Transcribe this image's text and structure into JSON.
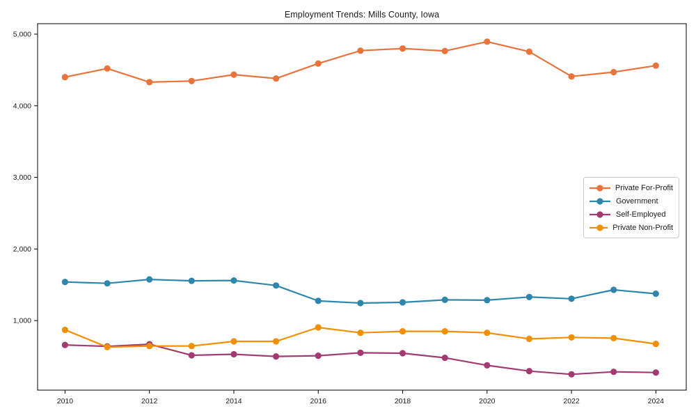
{
  "chart_data": {
    "type": "line",
    "title": "Employment Trends: Mills County, Iowa",
    "xlabel": "",
    "ylabel": "",
    "x": [
      2010,
      2011,
      2012,
      2013,
      2014,
      2015,
      2016,
      2017,
      2018,
      2019,
      2020,
      2021,
      2022,
      2023,
      2024
    ],
    "series": [
      {
        "name": "Private For-Profit",
        "color": "#E8743B",
        "values": [
          4400,
          4520,
          4330,
          4345,
          4435,
          4380,
          4590,
          4770,
          4800,
          4765,
          4895,
          4755,
          4410,
          4470,
          4560
        ]
      },
      {
        "name": "Government",
        "color": "#2E86AB",
        "values": [
          1540,
          1520,
          1575,
          1555,
          1560,
          1490,
          1275,
          1245,
          1255,
          1290,
          1285,
          1330,
          1305,
          1430,
          1375
        ]
      },
      {
        "name": "Self-Employed",
        "color": "#A23B72",
        "values": [
          660,
          640,
          670,
          515,
          530,
          500,
          510,
          550,
          545,
          480,
          375,
          295,
          250,
          285,
          275
        ]
      },
      {
        "name": "Private Non-Profit",
        "color": "#F18F01",
        "values": [
          870,
          630,
          645,
          645,
          710,
          710,
          905,
          830,
          850,
          850,
          830,
          745,
          765,
          755,
          675
        ]
      }
    ],
    "xlim": [
      2009.35,
      2024.72
    ],
    "ylim": [
      29,
      5146
    ],
    "x_ticks": [
      2010,
      2012,
      2014,
      2016,
      2018,
      2020,
      2022,
      2024
    ],
    "x_tick_labels": [
      "2010",
      "2012",
      "2014",
      "2016",
      "2018",
      "2020",
      "2022",
      "2024"
    ],
    "y_ticks": [
      1000,
      2000,
      3000,
      4000,
      5000
    ],
    "y_tick_labels": [
      "1,000",
      "2,000",
      "3,000",
      "4,000",
      "5,000"
    ],
    "grid": false,
    "legend_position": "center-right",
    "marker": "circle"
  },
  "style": {
    "spine_color": "#000000",
    "tick_text_color": "#1a1a1a",
    "legend_border_color": "#cccccc",
    "background": "#ffffff"
  }
}
